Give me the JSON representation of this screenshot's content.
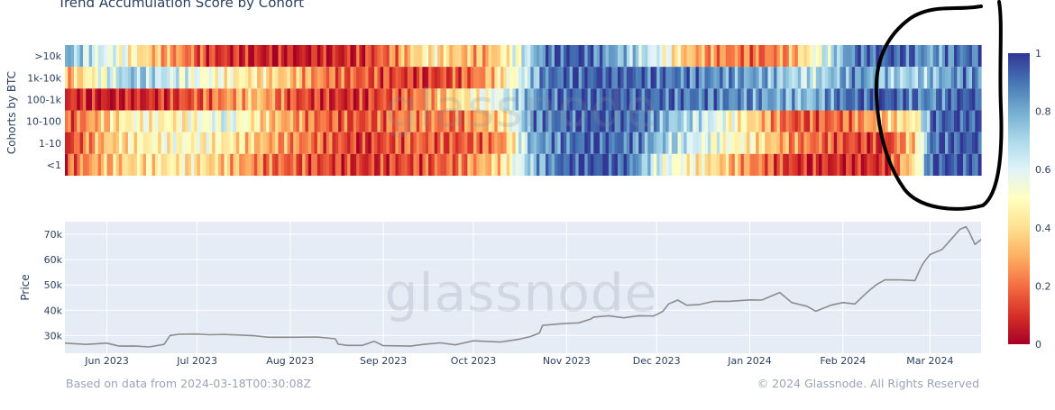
{
  "header": {
    "title": "Trend Accumulation Score by Cohort"
  },
  "footer": {
    "source": "Based on data from 2024-03-18T00:30:08Z",
    "copyright": "© 2024 Glassnode. All Rights Reserved"
  },
  "watermark": "glassnode",
  "colors": {
    "scale": [
      "#a50026",
      "#d73027",
      "#f46d43",
      "#fdae61",
      "#fee090",
      "#ffffbf",
      "#e0f3f8",
      "#abd9e9",
      "#74add1",
      "#4575b4",
      "#313695"
    ],
    "price_line": "#8c8c8c",
    "price_bg": "#e5ecf6",
    "annotation": "#000000"
  },
  "chart_data": [
    {
      "type": "heatmap",
      "title": "Trend Accumulation Score by Cohort",
      "ylabel": "Cohorts by BTC",
      "rows": [
        ">10k",
        "1k-10k",
        "100-1k",
        "10-100",
        "1-10",
        "<1"
      ],
      "x_start": "2023-05-18",
      "x_end": "2024-03-18",
      "colorbar": {
        "range": [
          0,
          1
        ],
        "ticks": [
          "0",
          "0.2",
          "0.4",
          "0.6",
          "0.8",
          "1"
        ]
      },
      "segments": {
        ">10k": [
          [
            "2023-05-18",
            0.8
          ],
          [
            "2023-05-25",
            0.65
          ],
          [
            "2023-06-05",
            0.55
          ],
          [
            "2023-06-15",
            0.35
          ],
          [
            "2023-06-25",
            0.25
          ],
          [
            "2023-07-05",
            0.12
          ],
          [
            "2023-07-15",
            0.08
          ],
          [
            "2023-08-05",
            0.05
          ],
          [
            "2023-08-25",
            0.1
          ],
          [
            "2023-09-05",
            0.25
          ],
          [
            "2023-09-15",
            0.45
          ],
          [
            "2023-09-25",
            0.35
          ],
          [
            "2023-10-05",
            0.3
          ],
          [
            "2023-10-15",
            0.55
          ],
          [
            "2023-10-25",
            0.9
          ],
          [
            "2023-11-05",
            0.95
          ],
          [
            "2023-11-20",
            0.75
          ],
          [
            "2023-12-01",
            0.6
          ],
          [
            "2023-12-10",
            0.35
          ],
          [
            "2023-12-20",
            0.25
          ],
          [
            "2024-01-05",
            0.2
          ],
          [
            "2024-01-15",
            0.3
          ],
          [
            "2024-01-25",
            0.6
          ],
          [
            "2024-02-05",
            0.9
          ],
          [
            "2024-02-20",
            0.95
          ],
          [
            "2024-03-01",
            0.8
          ],
          [
            "2024-03-10",
            0.9
          ]
        ],
        "1k-10k": [
          [
            "2023-05-18",
            0.3
          ],
          [
            "2023-05-28",
            0.5
          ],
          [
            "2023-06-08",
            0.75
          ],
          [
            "2023-06-20",
            0.65
          ],
          [
            "2023-07-01",
            0.55
          ],
          [
            "2023-07-15",
            0.45
          ],
          [
            "2023-08-01",
            0.35
          ],
          [
            "2023-08-15",
            0.2
          ],
          [
            "2023-09-01",
            0.15
          ],
          [
            "2023-09-15",
            0.1
          ],
          [
            "2023-10-01",
            0.2
          ],
          [
            "2023-10-15",
            0.55
          ],
          [
            "2023-10-25",
            0.9
          ],
          [
            "2023-11-15",
            0.95
          ],
          [
            "2023-12-01",
            0.9
          ],
          [
            "2023-12-20",
            0.85
          ],
          [
            "2024-01-05",
            0.8
          ],
          [
            "2024-01-20",
            0.65
          ],
          [
            "2024-02-05",
            0.85
          ],
          [
            "2024-02-20",
            0.7
          ],
          [
            "2024-03-01",
            0.75
          ],
          [
            "2024-03-10",
            0.85
          ]
        ],
        "100-1k": [
          [
            "2023-05-18",
            0.1
          ],
          [
            "2023-06-01",
            0.05
          ],
          [
            "2023-06-20",
            0.1
          ],
          [
            "2023-07-05",
            0.2
          ],
          [
            "2023-07-20",
            0.35
          ],
          [
            "2023-08-01",
            0.15
          ],
          [
            "2023-08-20",
            0.08
          ],
          [
            "2023-09-10",
            0.2
          ],
          [
            "2023-09-25",
            0.4
          ],
          [
            "2023-10-10",
            0.6
          ],
          [
            "2023-10-25",
            0.9
          ],
          [
            "2023-11-15",
            0.95
          ],
          [
            "2023-12-05",
            0.9
          ],
          [
            "2024-01-01",
            0.85
          ],
          [
            "2024-01-20",
            0.75
          ],
          [
            "2024-02-01",
            0.9
          ],
          [
            "2024-02-15",
            0.95
          ],
          [
            "2024-03-01",
            0.85
          ],
          [
            "2024-03-10",
            0.95
          ]
        ],
        "10-100": [
          [
            "2023-05-18",
            0.15
          ],
          [
            "2023-05-28",
            0.3
          ],
          [
            "2023-06-10",
            0.5
          ],
          [
            "2023-06-25",
            0.45
          ],
          [
            "2023-07-10",
            0.6
          ],
          [
            "2023-07-25",
            0.35
          ],
          [
            "2023-08-10",
            0.2
          ],
          [
            "2023-08-25",
            0.15
          ],
          [
            "2023-09-10",
            0.25
          ],
          [
            "2023-09-25",
            0.2
          ],
          [
            "2023-10-10",
            0.4
          ],
          [
            "2023-10-20",
            0.85
          ],
          [
            "2023-11-10",
            0.95
          ],
          [
            "2023-11-25",
            0.9
          ],
          [
            "2023-12-05",
            0.75
          ],
          [
            "2023-12-20",
            0.6
          ],
          [
            "2024-01-01",
            0.4
          ],
          [
            "2024-01-15",
            0.15
          ],
          [
            "2024-02-01",
            0.2
          ],
          [
            "2024-02-15",
            0.35
          ],
          [
            "2024-02-25",
            0.45
          ],
          [
            "2024-03-01",
            0.9
          ],
          [
            "2024-03-10",
            0.95
          ]
        ],
        "1-10": [
          [
            "2023-05-18",
            0.1
          ],
          [
            "2023-05-28",
            0.3
          ],
          [
            "2023-06-10",
            0.45
          ],
          [
            "2023-06-25",
            0.5
          ],
          [
            "2023-07-10",
            0.45
          ],
          [
            "2023-07-25",
            0.3
          ],
          [
            "2023-08-10",
            0.2
          ],
          [
            "2023-08-25",
            0.1
          ],
          [
            "2023-09-10",
            0.2
          ],
          [
            "2023-09-25",
            0.15
          ],
          [
            "2023-10-10",
            0.25
          ],
          [
            "2023-10-20",
            0.8
          ],
          [
            "2023-11-10",
            0.95
          ],
          [
            "2023-11-25",
            0.85
          ],
          [
            "2023-12-05",
            0.7
          ],
          [
            "2023-12-20",
            0.55
          ],
          [
            "2024-01-01",
            0.45
          ],
          [
            "2024-01-15",
            0.25
          ],
          [
            "2024-02-01",
            0.15
          ],
          [
            "2024-02-15",
            0.1
          ],
          [
            "2024-02-25",
            0.4
          ],
          [
            "2024-03-01",
            0.9
          ],
          [
            "2024-03-10",
            0.95
          ]
        ],
        "<1": [
          [
            "2023-05-18",
            0.15
          ],
          [
            "2023-05-28",
            0.3
          ],
          [
            "2023-06-10",
            0.4
          ],
          [
            "2023-06-25",
            0.45
          ],
          [
            "2023-07-10",
            0.35
          ],
          [
            "2023-07-25",
            0.2
          ],
          [
            "2023-08-10",
            0.15
          ],
          [
            "2023-08-25",
            0.1
          ],
          [
            "2023-09-10",
            0.15
          ],
          [
            "2023-09-25",
            0.2
          ],
          [
            "2023-10-10",
            0.4
          ],
          [
            "2023-10-20",
            0.75
          ],
          [
            "2023-11-01",
            0.95
          ],
          [
            "2023-11-20",
            0.95
          ],
          [
            "2023-12-01",
            0.6
          ],
          [
            "2023-12-15",
            0.45
          ],
          [
            "2024-01-01",
            0.25
          ],
          [
            "2024-01-15",
            0.1
          ],
          [
            "2024-02-01",
            0.08
          ],
          [
            "2024-02-15",
            0.1
          ],
          [
            "2024-02-25",
            0.45
          ],
          [
            "2024-03-01",
            0.95
          ],
          [
            "2024-03-10",
            0.95
          ]
        ]
      }
    },
    {
      "type": "line",
      "ylabel": "Price",
      "series": [
        {
          "x": [
            "2023-05-18",
            "2023-05-25",
            "2023-06-01",
            "2023-06-05",
            "2023-06-10",
            "2023-06-15",
            "2023-06-20",
            "2023-06-22",
            "2023-06-25",
            "2023-07-01",
            "2023-07-05",
            "2023-07-10",
            "2023-07-15",
            "2023-07-20",
            "2023-07-25",
            "2023-08-01",
            "2023-08-10",
            "2023-08-16",
            "2023-08-17",
            "2023-08-20",
            "2023-08-25",
            "2023-08-29",
            "2023-09-01",
            "2023-09-10",
            "2023-09-15",
            "2023-09-20",
            "2023-09-25",
            "2023-10-01",
            "2023-10-10",
            "2023-10-16",
            "2023-10-20",
            "2023-10-23",
            "2023-10-24",
            "2023-10-31",
            "2023-11-05",
            "2023-11-09",
            "2023-11-10",
            "2023-11-15",
            "2023-11-20",
            "2023-11-25",
            "2023-11-30",
            "2023-12-03",
            "2023-12-05",
            "2023-12-08",
            "2023-12-11",
            "2023-12-15",
            "2023-12-20",
            "2023-12-25",
            "2024-01-01",
            "2024-01-05",
            "2024-01-10",
            "2024-01-11",
            "2024-01-15",
            "2024-01-20",
            "2024-01-23",
            "2024-01-28",
            "2024-02-01",
            "2024-02-05",
            "2024-02-09",
            "2024-02-12",
            "2024-02-15",
            "2024-02-20",
            "2024-02-25",
            "2024-02-27",
            "2024-02-28",
            "2024-03-01",
            "2024-03-05",
            "2024-03-08",
            "2024-03-11",
            "2024-03-13",
            "2024-03-14",
            "2024-03-16",
            "2024-03-18"
          ],
          "y": [
            27000,
            26500,
            27000,
            25800,
            25900,
            25500,
            26500,
            30000,
            30500,
            30600,
            30300,
            30400,
            30200,
            29900,
            29300,
            29300,
            29400,
            28700,
            26600,
            26100,
            26100,
            27700,
            26000,
            25800,
            26600,
            27100,
            26300,
            27900,
            27400,
            28500,
            29600,
            31000,
            34000,
            34700,
            35000,
            36500,
            37300,
            37800,
            37000,
            37800,
            37700,
            39500,
            42500,
            44000,
            42000,
            42200,
            43500,
            43500,
            44100,
            44000,
            46500,
            47000,
            43000,
            41600,
            39600,
            42000,
            43000,
            42500,
            47000,
            50000,
            52000,
            52000,
            51700,
            57000,
            59000,
            62000,
            64000,
            68000,
            72000,
            73000,
            71000,
            66000,
            68000
          ]
        }
      ],
      "xticks": [
        "Jun 2023",
        "Jul 2023",
        "Aug 2023",
        "Sep 2023",
        "Oct 2023",
        "Nov 2023",
        "Dec 2023",
        "Jan 2024",
        "Feb 2024",
        "Mar 2024"
      ],
      "yticks": [
        "30k",
        "40k",
        "50k",
        "60k",
        "70k"
      ],
      "ylim": [
        23000,
        75000
      ]
    }
  ]
}
